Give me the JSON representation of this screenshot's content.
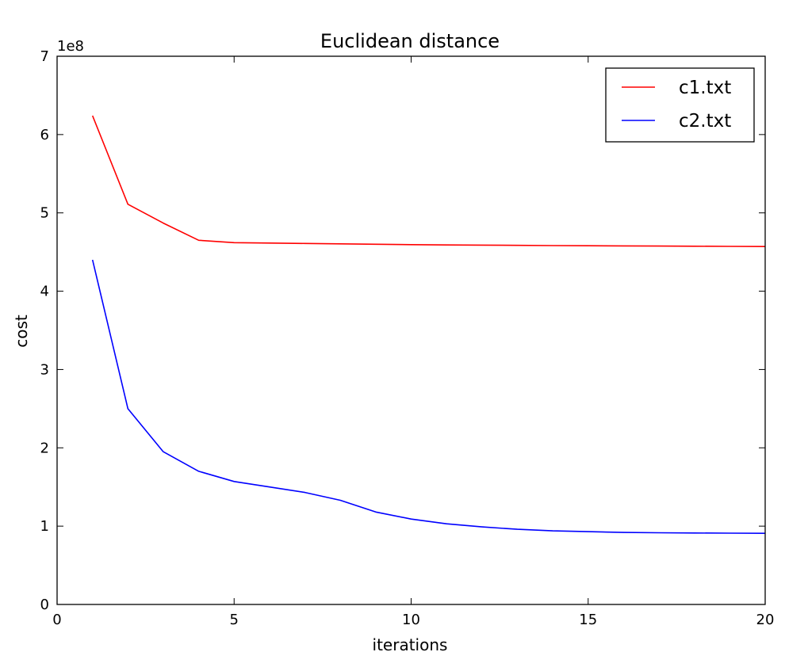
{
  "chart_data": {
    "type": "line",
    "title": "Euclidean distance",
    "xlabel": "iterations",
    "ylabel": "cost",
    "y_offset_label": "1e8",
    "xlim": [
      0,
      20
    ],
    "ylim": [
      0,
      7
    ],
    "x_ticks": [
      0,
      5,
      10,
      15,
      20
    ],
    "x_tick_labels": [
      "0",
      "5",
      "10",
      "15",
      "20"
    ],
    "y_ticks": [
      0,
      1,
      2,
      3,
      4,
      5,
      6,
      7
    ],
    "y_tick_labels": [
      "0",
      "1",
      "2",
      "3",
      "4",
      "5",
      "6",
      "7"
    ],
    "grid": false,
    "legend_position": "top-right",
    "x": [
      1,
      2,
      3,
      4,
      5,
      6,
      7,
      8,
      9,
      10,
      11,
      12,
      13,
      14,
      15,
      16,
      17,
      18,
      19,
      20
    ],
    "series": [
      {
        "name": "c1.txt",
        "color": "#ff0000",
        "values": [
          6.24,
          5.11,
          4.87,
          4.65,
          4.62,
          4.615,
          4.61,
          4.605,
          4.6,
          4.595,
          4.59,
          4.588,
          4.585,
          4.582,
          4.58,
          4.578,
          4.576,
          4.574,
          4.572,
          4.57
        ]
      },
      {
        "name": "c2.txt",
        "color": "#0000ff",
        "values": [
          4.4,
          2.5,
          1.95,
          1.7,
          1.57,
          1.5,
          1.43,
          1.33,
          1.18,
          1.09,
          1.03,
          0.99,
          0.96,
          0.94,
          0.93,
          0.92,
          0.915,
          0.912,
          0.91,
          0.908
        ]
      }
    ]
  }
}
